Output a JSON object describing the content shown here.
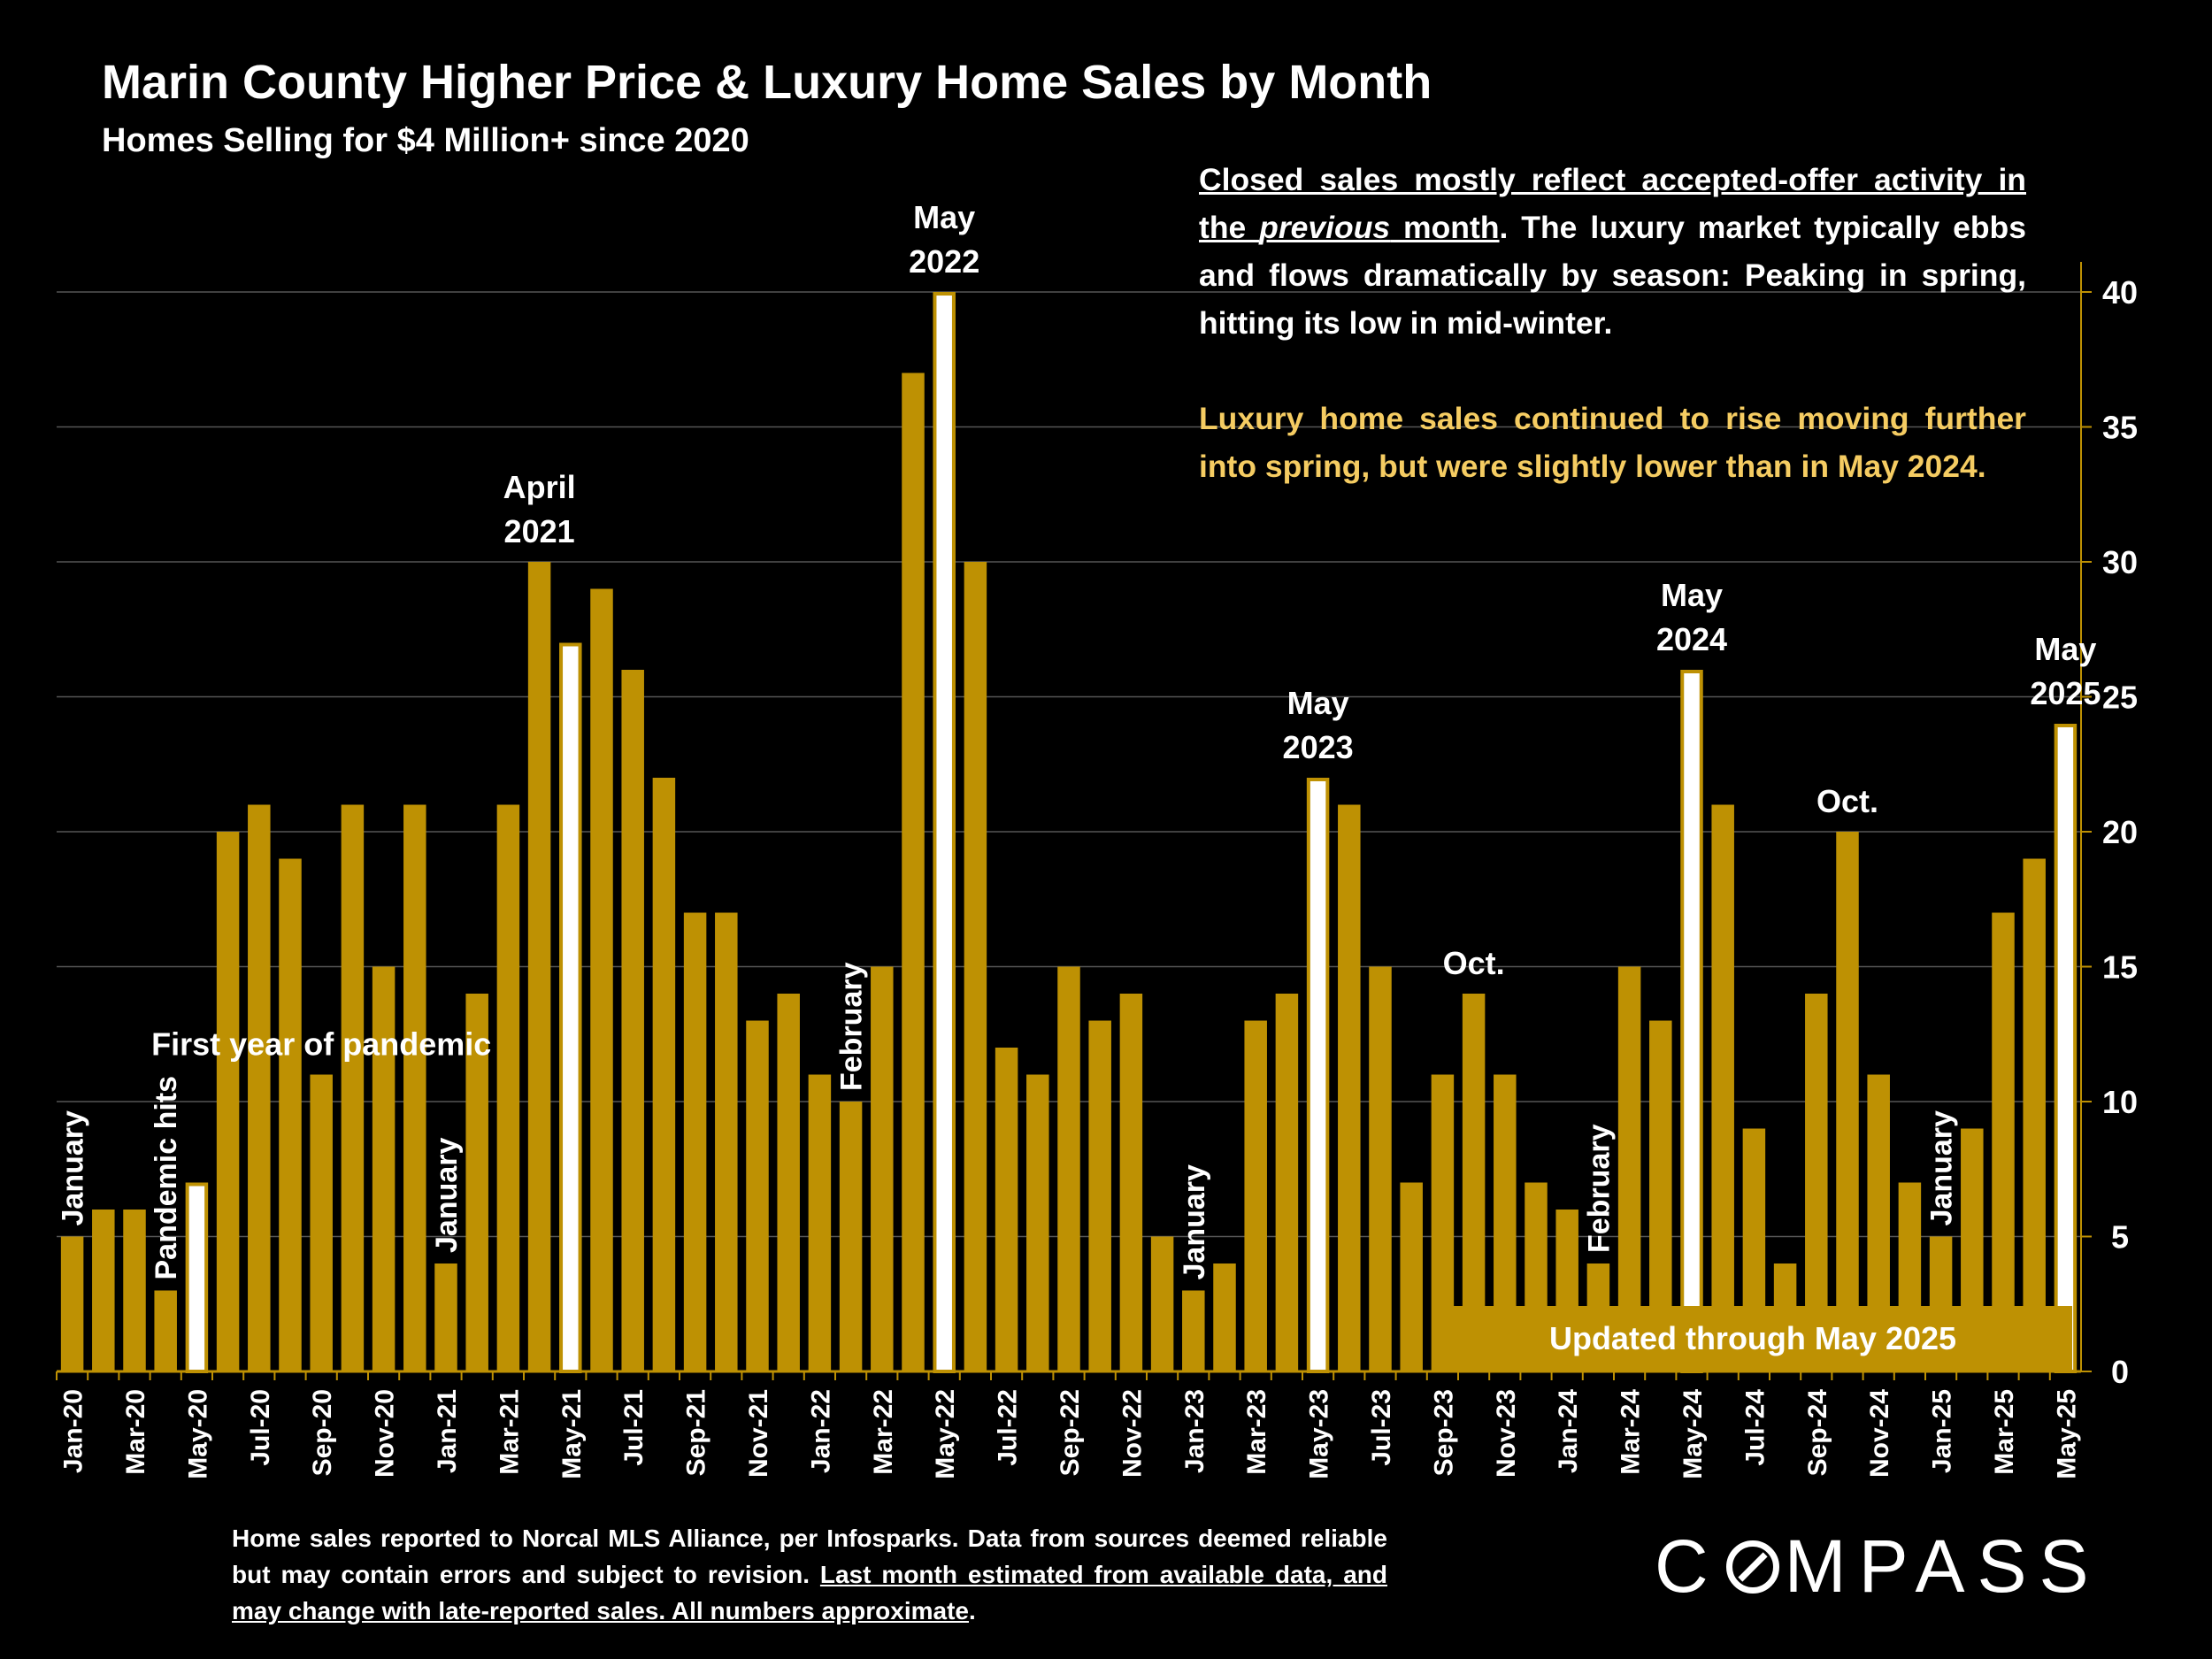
{
  "title": "Marin County Higher Price & Luxury Home Sales by Month",
  "subtitle": "Homes Selling for $4 Million+ since 2020",
  "note1": {
    "part1": "Closed sales mostly reflect accepted-offer activity in the ",
    "part2": "previous",
    "part3": " month",
    "part4": ". The luxury market typically ebbs and flows dramatically by season: Peaking in spring, hitting its low in mid-winter."
  },
  "note2": "Luxury home sales continued to rise moving further into spring, but were slightly lower than in May 2024.",
  "updated_label": "Updated through May 2025",
  "footer": {
    "text": "Home sales reported to Norcal MLS Alliance, per Infosparks. Data from sources deemed reliable but may contain errors and subject to revision. ",
    "underlined": "Last month estimated from available data, and may change with late-reported sales. All numbers approximate"
  },
  "logo": {
    "left": "C",
    "right": "MPASS"
  },
  "colors": {
    "bar": "#BE9103",
    "highlight_fill": "#FFFFFF",
    "grid": "#555555",
    "axis": "#BE9103",
    "note2": "#F5CC62"
  },
  "chart_data": {
    "type": "bar",
    "title": "Marin County Higher Price & Luxury Home Sales by Month",
    "ylim": [
      0,
      40
    ],
    "yticks": [
      0,
      5,
      10,
      15,
      20,
      25,
      30,
      35,
      40
    ],
    "categories": [
      "Jan-20",
      "Feb-20",
      "Mar-20",
      "Apr-20",
      "May-20",
      "Jun-20",
      "Jul-20",
      "Aug-20",
      "Sep-20",
      "Oct-20",
      "Nov-20",
      "Dec-20",
      "Jan-21",
      "Feb-21",
      "Mar-21",
      "Apr-21",
      "May-21",
      "Jun-21",
      "Jul-21",
      "Aug-21",
      "Sep-21",
      "Oct-21",
      "Nov-21",
      "Dec-21",
      "Jan-22",
      "Feb-22",
      "Mar-22",
      "Apr-22",
      "May-22",
      "Jun-22",
      "Jul-22",
      "Aug-22",
      "Sep-22",
      "Oct-22",
      "Nov-22",
      "Dec-22",
      "Jan-23",
      "Feb-23",
      "Mar-23",
      "Apr-23",
      "May-23",
      "Jun-23",
      "Jul-23",
      "Aug-23",
      "Sep-23",
      "Oct-23",
      "Nov-23",
      "Dec-23",
      "Jan-24",
      "Feb-24",
      "Mar-24",
      "Apr-24",
      "May-24",
      "Jun-24",
      "Jul-24",
      "Aug-24",
      "Sep-24",
      "Oct-24",
      "Nov-24",
      "Dec-24",
      "Jan-25",
      "Feb-25",
      "Mar-25",
      "Apr-25",
      "May-25"
    ],
    "values": [
      5,
      6,
      6,
      3,
      7,
      20,
      21,
      19,
      11,
      21,
      15,
      21,
      4,
      14,
      21,
      30,
      27,
      29,
      26,
      22,
      17,
      17,
      13,
      14,
      11,
      10,
      15,
      37,
      40,
      30,
      12,
      11,
      15,
      13,
      14,
      5,
      3,
      4,
      13,
      14,
      22,
      21,
      15,
      7,
      11,
      14,
      11,
      7,
      6,
      4,
      15,
      13,
      26,
      21,
      9,
      4,
      14,
      20,
      11,
      7,
      5,
      9,
      17,
      19,
      24
    ],
    "highlighted": [
      "May-20",
      "May-21",
      "May-22",
      "May-23",
      "May-24",
      "May-25"
    ],
    "xtick_labels": [
      "Jan-20",
      "Mar-20",
      "May-20",
      "Jul-20",
      "Sep-20",
      "Nov-20",
      "Jan-21",
      "Mar-21",
      "May-21",
      "Jul-21",
      "Sep-21",
      "Nov-21",
      "Jan-22",
      "Mar-22",
      "May-22",
      "Jul-22",
      "Sep-22",
      "Nov-22",
      "Jan-23",
      "Mar-23",
      "May-23",
      "Jul-23",
      "Sep-23",
      "Nov-23",
      "Jan-24",
      "Mar-24",
      "May-24",
      "Jul-24",
      "Sep-24",
      "Nov-24",
      "Jan-25",
      "Mar-25",
      "May-25"
    ],
    "annotations": [
      {
        "category": "Jan-20",
        "text": "January",
        "orientation": "vertical"
      },
      {
        "category": "Apr-20",
        "text": "Pandemic hits",
        "orientation": "vertical"
      },
      {
        "category": "Sep-20",
        "text": "First year of pandemic",
        "orientation": "horizontal"
      },
      {
        "category": "Jan-21",
        "text": "January",
        "orientation": "vertical"
      },
      {
        "category": "Apr-21",
        "lines": [
          "April",
          "2021"
        ],
        "orientation": "horizontal"
      },
      {
        "category": "Feb-22",
        "text": "February",
        "orientation": "vertical"
      },
      {
        "category": "May-22",
        "lines": [
          "May",
          "2022"
        ],
        "orientation": "horizontal"
      },
      {
        "category": "Jan-23",
        "text": "January",
        "orientation": "vertical"
      },
      {
        "category": "May-23",
        "lines": [
          "May",
          "2023"
        ],
        "orientation": "horizontal"
      },
      {
        "category": "Oct-23",
        "text": "Oct.",
        "orientation": "horizontal"
      },
      {
        "category": "Feb-24",
        "text": "February",
        "orientation": "vertical"
      },
      {
        "category": "May-24",
        "lines": [
          "May",
          "2024"
        ],
        "orientation": "horizontal"
      },
      {
        "category": "Oct-24",
        "text": "Oct.",
        "orientation": "horizontal"
      },
      {
        "category": "Jan-25",
        "text": "January",
        "orientation": "vertical"
      },
      {
        "category": "May-25",
        "lines": [
          "May",
          "2025"
        ],
        "orientation": "horizontal"
      }
    ]
  }
}
